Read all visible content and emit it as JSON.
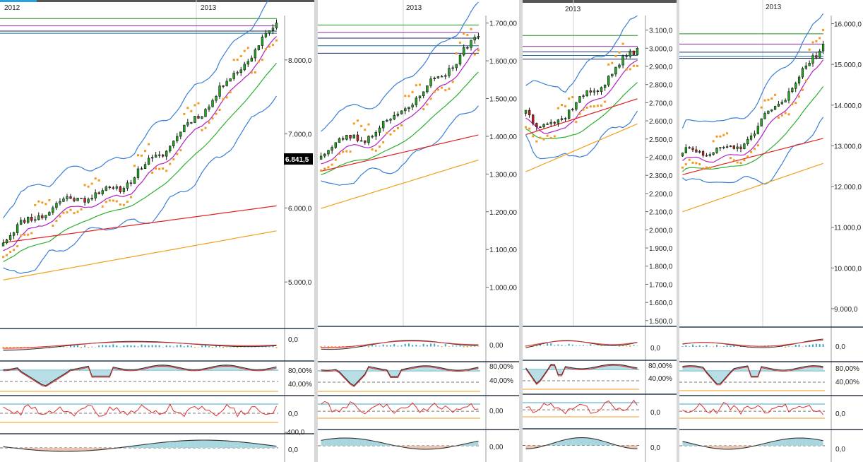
{
  "colors": {
    "bull": "#22aa22",
    "bear": "#cc2222",
    "wick": "#111111",
    "bollinger": "#3a7fd5",
    "ma_short": "#b21fc4",
    "ma_mid": "#2db02d",
    "ma_long": "#e02020",
    "ma_longest": "#f0a020",
    "sar": "#f39a1e",
    "level_green": "#1f8f1f",
    "level_purple": "#8a2d9c",
    "level_navy": "#1a2a6c",
    "level_teal": "#1d6f8a",
    "panel_fill": "#a7d6df",
    "panel_neg_fill": "#e8c4b0",
    "macd_fill": "#f3b8b8",
    "osc_red": "#e03030",
    "osc_black": "#333333",
    "hist": "#3aa8c8",
    "hist_neg": "#f0a020",
    "last_price_bg": "#000000"
  },
  "chart_data": [
    {
      "type": "candlestick",
      "year_labels": [
        "2012",
        "2013"
      ],
      "y_ticks": [
        "8.000,0",
        "7.000,0",
        "6.000,0",
        "5.000,0"
      ],
      "ylim": [
        4400,
        8600
      ],
      "last_price_label": "6.841,5",
      "last_price": 6841.5,
      "start": 5600,
      "mid_low": 6200,
      "end": 8500,
      "levels": [
        8560,
        8460,
        8390,
        8360
      ],
      "indicator_labels": {
        "macd": "0,0",
        "stoch_high": "80,00%",
        "stoch_low": "40,00%",
        "rsi": "0,0",
        "rsi_low": "-400,0",
        "obv": "0,0"
      }
    },
    {
      "type": "candlestick",
      "year_labels": [
        "2013"
      ],
      "y_ticks": [
        "1.700,00",
        "1.600,00",
        "1.500,00",
        "1.400,00",
        "1.300,00",
        "1.200,00",
        "1.100,00",
        "1.000,00"
      ],
      "ylim": [
        900,
        1720
      ],
      "start": 1360,
      "mid_low": 1395,
      "end": 1665,
      "levels": [
        1695,
        1675,
        1660,
        1640,
        1620
      ],
      "indicator_labels": {
        "macd": "0,00",
        "stoch_high": "80,00%",
        "stoch_low": "40,00%",
        "rsi": "0,00",
        "obv": "0,00"
      }
    },
    {
      "type": "candlestick",
      "year_labels": [
        "2013"
      ],
      "y_ticks": [
        "3.100,0",
        "3.000,0",
        "2.900,0",
        "2.800,0",
        "2.700,0",
        "2.600,0",
        "2.500,0",
        "2.400,0",
        "2.300,0",
        "2.200,0",
        "2.100,0",
        "2.000,0",
        "1.900,0",
        "1.800,0",
        "1.700,0",
        "1.600,0",
        "1.500,0"
      ],
      "ylim": [
        1480,
        3180
      ],
      "start": 2680,
      "mid_low": 2560,
      "end": 3000,
      "levels": [
        3070,
        3010,
        2980,
        2960,
        2940
      ],
      "indicator_labels": {
        "macd": "0,0",
        "stoch_high": "80,00%",
        "stoch_low": "40,00%",
        "rsi": "0,0",
        "obv": "0,0"
      }
    },
    {
      "type": "candlestick",
      "year_labels": [
        "2013"
      ],
      "y_ticks": [
        "16.000,0",
        "15.000,0",
        "14.000,0",
        "13.000,0",
        "12.000,0",
        "11.000,0",
        "10.000,0",
        "9.000,0"
      ],
      "ylim": [
        8600,
        16200
      ],
      "start": 12800,
      "mid_low": 12900,
      "end": 15500,
      "levels": [
        15750,
        15500,
        15300,
        15200,
        15150
      ],
      "indicator_labels": {
        "macd": "0,0",
        "stoch_high": "80,00%",
        "stoch_low": "40,00%",
        "rsi": "0,0",
        "obv": "0,0"
      }
    }
  ]
}
